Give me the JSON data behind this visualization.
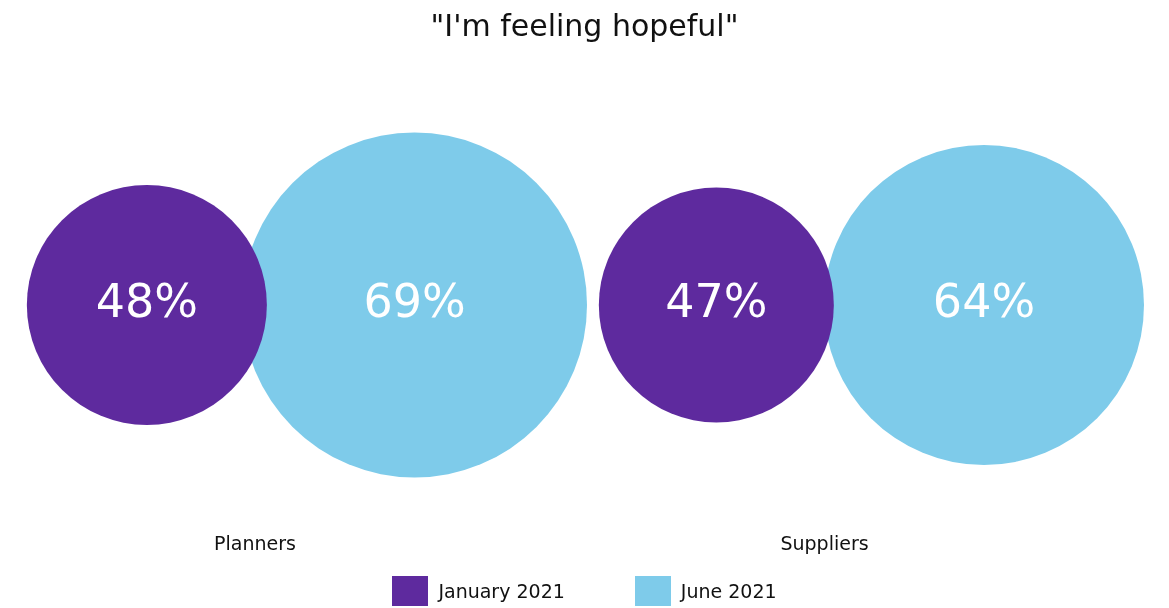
{
  "chart_data": {
    "type": "other",
    "title": "\"I'm feeling hopeful\"",
    "categories": [
      "Planners",
      "Suppliers"
    ],
    "series": [
      {
        "name": "January 2021",
        "color": "#5e2a9e",
        "values": [
          48,
          47
        ],
        "value_labels": [
          "48%",
          "47%"
        ]
      },
      {
        "name": "June 2021",
        "color": "#7ecbea",
        "values": [
          69,
          64
        ],
        "value_labels": [
          "69%",
          "64%"
        ]
      }
    ],
    "legend": "bottom"
  }
}
